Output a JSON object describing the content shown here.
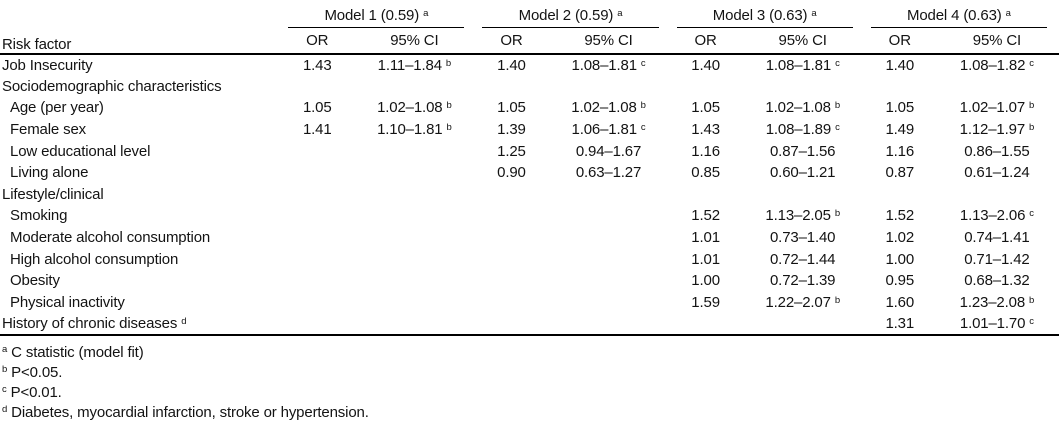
{
  "table": {
    "risk_factor_header": "Risk factor",
    "column_labels": {
      "or": "OR",
      "ci": "95% CI"
    },
    "models": [
      {
        "label": "Model 1 (0.59)",
        "sup": "a"
      },
      {
        "label": "Model 2 (0.59)",
        "sup": "a"
      },
      {
        "label": "Model 3 (0.63)",
        "sup": "a"
      },
      {
        "label": "Model 4 (0.63)",
        "sup": "a"
      }
    ],
    "rows": [
      {
        "label": "Job Insecurity",
        "indent": false,
        "cells": [
          {
            "or": "1.43",
            "ci": "1.11–1.84",
            "sup": "b"
          },
          {
            "or": "1.40",
            "ci": "1.08–1.81",
            "sup": "c"
          },
          {
            "or": "1.40",
            "ci": "1.08–1.81",
            "sup": "c"
          },
          {
            "or": "1.40",
            "ci": "1.08–1.82",
            "sup": "c"
          }
        ]
      },
      {
        "label": "Sociodemographic characteristics",
        "indent": false,
        "cells": [
          null,
          null,
          null,
          null
        ]
      },
      {
        "label": "Age (per year)",
        "indent": true,
        "cells": [
          {
            "or": "1.05",
            "ci": "1.02–1.08",
            "sup": "b"
          },
          {
            "or": "1.05",
            "ci": "1.02–1.08",
            "sup": "b"
          },
          {
            "or": "1.05",
            "ci": "1.02–1.08",
            "sup": "b"
          },
          {
            "or": "1.05",
            "ci": "1.02–1.07",
            "sup": "b"
          }
        ]
      },
      {
        "label": "Female sex",
        "indent": true,
        "cells": [
          {
            "or": "1.41",
            "ci": "1.10–1.81",
            "sup": "b"
          },
          {
            "or": "1.39",
            "ci": "1.06–1.81",
            "sup": "c"
          },
          {
            "or": "1.43",
            "ci": "1.08–1.89",
            "sup": "c"
          },
          {
            "or": "1.49",
            "ci": "1.12–1.97",
            "sup": "b"
          }
        ]
      },
      {
        "label": "Low educational level",
        "indent": true,
        "cells": [
          null,
          {
            "or": "1.25",
            "ci": "0.94–1.67"
          },
          {
            "or": "1.16",
            "ci": "0.87–1.56"
          },
          {
            "or": "1.16",
            "ci": "0.86–1.55"
          }
        ]
      },
      {
        "label": "Living alone",
        "indent": true,
        "cells": [
          null,
          {
            "or": "0.90",
            "ci": "0.63–1.27"
          },
          {
            "or": "0.85",
            "ci": "0.60–1.21"
          },
          {
            "or": "0.87",
            "ci": "0.61–1.24"
          }
        ]
      },
      {
        "label": "Lifestyle/clinical",
        "indent": false,
        "cells": [
          null,
          null,
          null,
          null
        ]
      },
      {
        "label": "Smoking",
        "indent": true,
        "cells": [
          null,
          null,
          {
            "or": "1.52",
            "ci": "1.13–2.05",
            "sup": "b"
          },
          {
            "or": "1.52",
            "ci": "1.13–2.06",
            "sup": "c"
          }
        ]
      },
      {
        "label": "Moderate alcohol consumption",
        "indent": true,
        "cells": [
          null,
          null,
          {
            "or": "1.01",
            "ci": "0.73–1.40"
          },
          {
            "or": "1.02",
            "ci": "0.74–1.41"
          }
        ]
      },
      {
        "label": "High alcohol consumption",
        "indent": true,
        "cells": [
          null,
          null,
          {
            "or": "1.01",
            "ci": "0.72–1.44"
          },
          {
            "or": "1.00",
            "ci": "0.71–1.42"
          }
        ]
      },
      {
        "label": "Obesity",
        "indent": true,
        "cells": [
          null,
          null,
          {
            "or": "1.00",
            "ci": "0.72–1.39"
          },
          {
            "or": "0.95",
            "ci": "0.68–1.32"
          }
        ]
      },
      {
        "label": "Physical inactivity",
        "indent": true,
        "cells": [
          null,
          null,
          {
            "or": "1.59",
            "ci": "1.22–2.07",
            "sup": "b"
          },
          {
            "or": "1.60",
            "ci": "1.23–2.08",
            "sup": "b"
          }
        ]
      },
      {
        "label": "History of chronic diseases",
        "label_sup": "d",
        "indent": false,
        "cells": [
          null,
          null,
          null,
          {
            "or": "1.31",
            "ci": "1.01–1.70",
            "sup": "c"
          }
        ]
      }
    ],
    "footnotes": [
      {
        "sup": "a",
        "text": "C statistic (model fit)"
      },
      {
        "sup": "b",
        "text": "P<0.05."
      },
      {
        "sup": "c",
        "text": "P<0.01."
      },
      {
        "sup": "d",
        "text": "Diabetes, myocardial infarction, stroke or hypertension."
      }
    ]
  }
}
